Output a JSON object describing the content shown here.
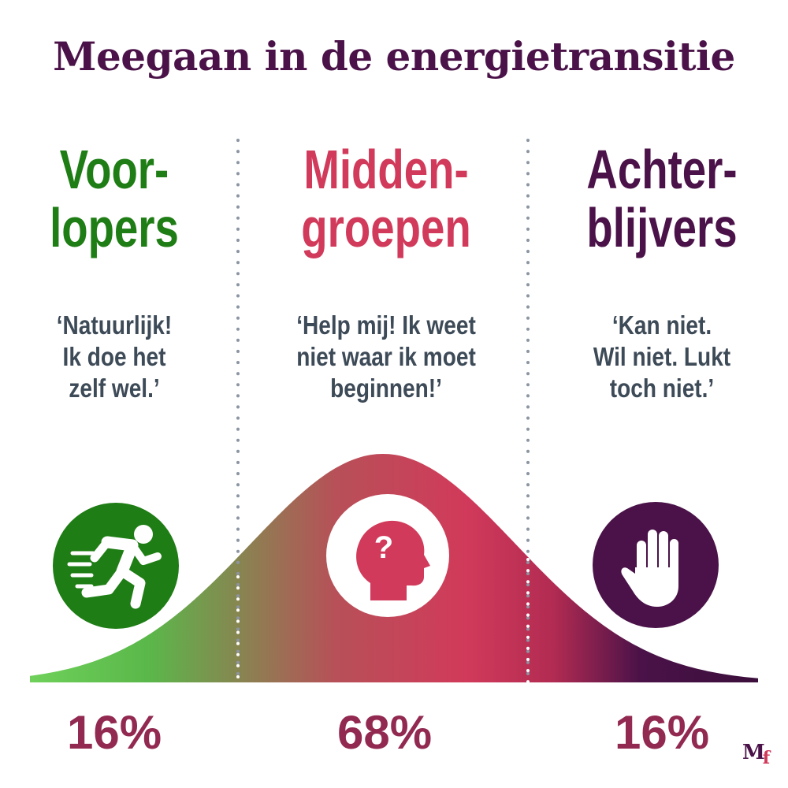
{
  "title": "Meegaan in de energietransitie",
  "groups": [
    {
      "line1": "Voor-",
      "line2": "lopers",
      "quote": [
        "‘Natuurlijk!",
        "Ik doe het",
        "zelf wel.’"
      ],
      "percent": "16%",
      "icon": "running-person-icon",
      "color": "#1e7d14"
    },
    {
      "line1": "Midden-",
      "line2": "groepen",
      "quote": [
        "‘Help mij! Ik weet",
        "niet waar ik moet",
        "beginnen!’"
      ],
      "percent": "68%",
      "icon": "question-head-icon",
      "color": "#d13a5a"
    },
    {
      "line1": "Achter-",
      "line2": "blijvers",
      "quote": [
        "‘Kan niet.",
        "Wil niet. Lukt",
        "toch niet.’"
      ],
      "percent": "16%",
      "icon": "stop-hand-icon",
      "color": "#4a1248"
    }
  ],
  "curve": {
    "type": "normal-distribution",
    "gradient": [
      "#5ab84a",
      "#d13a5a",
      "#4a1248"
    ]
  },
  "logo": {
    "m": "M",
    "f": "f"
  },
  "percent_color": "#922950"
}
